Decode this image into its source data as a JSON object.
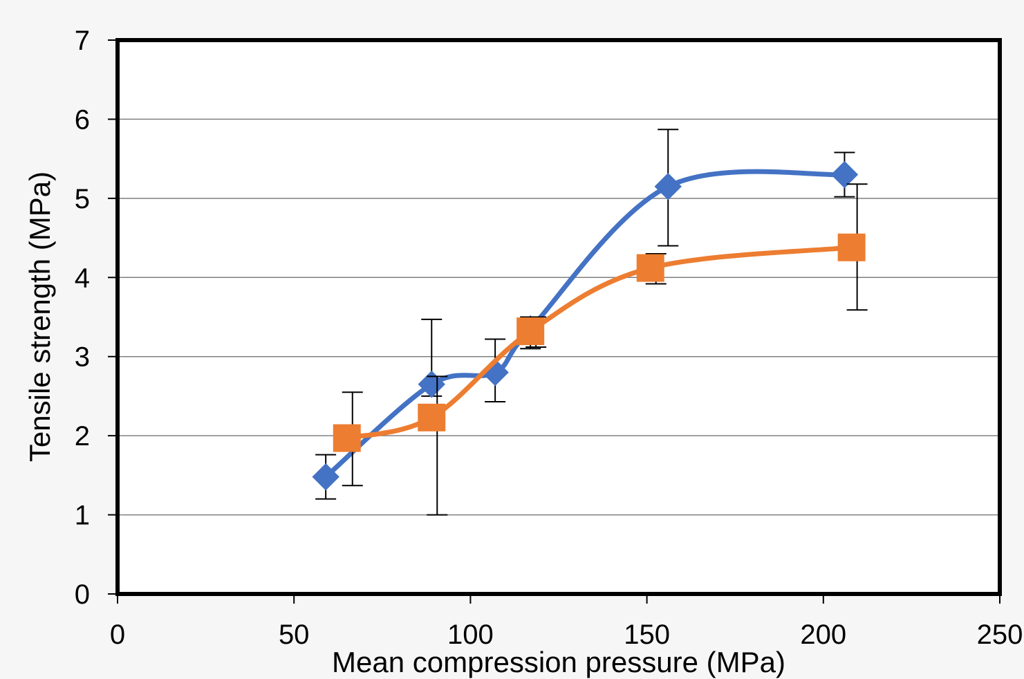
{
  "chart_data": {
    "type": "line",
    "title": "",
    "xlabel": "Mean compression pressure (MPa)",
    "ylabel": "Tensile strength (MPa)",
    "xlim": [
      0,
      250
    ],
    "ylim": [
      0,
      7
    ],
    "x_ticks": [
      0,
      50,
      100,
      150,
      200,
      250
    ],
    "y_ticks": [
      0,
      1,
      2,
      3,
      4,
      5,
      6,
      7
    ],
    "grid": "horizontal",
    "legend": "none",
    "series": [
      {
        "color": "#4472C4",
        "marker": "diamond",
        "smooth": true,
        "points": [
          {
            "x": 59,
            "y": 1.48,
            "err_low": 1.2,
            "err_high": 1.76
          },
          {
            "x": 89,
            "y": 2.65,
            "err_low": 2.5,
            "err_high": 3.47
          },
          {
            "x": 107,
            "y": 2.8,
            "err_low": 2.43,
            "err_high": 3.22
          },
          {
            "x": 117,
            "y": 3.35,
            "err_low": 3.1,
            "err_high": 3.5
          },
          {
            "x": 156,
            "y": 5.15,
            "err_low": 4.4,
            "err_high": 5.87
          },
          {
            "x": 206,
            "y": 5.3,
            "err_low": 5.02,
            "err_high": 5.58
          }
        ]
      },
      {
        "color": "#ED7D31",
        "marker": "square",
        "smooth": true,
        "points": [
          {
            "x": 65,
            "y": 1.97,
            "err_low": 1.37,
            "err_high": 2.55
          },
          {
            "x": 89,
            "y": 2.23,
            "err_low": 1.0,
            "err_high": 2.75
          },
          {
            "x": 117,
            "y": 3.32,
            "err_low": 3.12,
            "err_high": 3.5
          },
          {
            "x": 151,
            "y": 4.12,
            "err_low": 3.92,
            "err_high": 4.3
          },
          {
            "x": 208,
            "y": 4.38,
            "err_low": 3.59,
            "err_high": 5.18
          }
        ]
      }
    ]
  }
}
